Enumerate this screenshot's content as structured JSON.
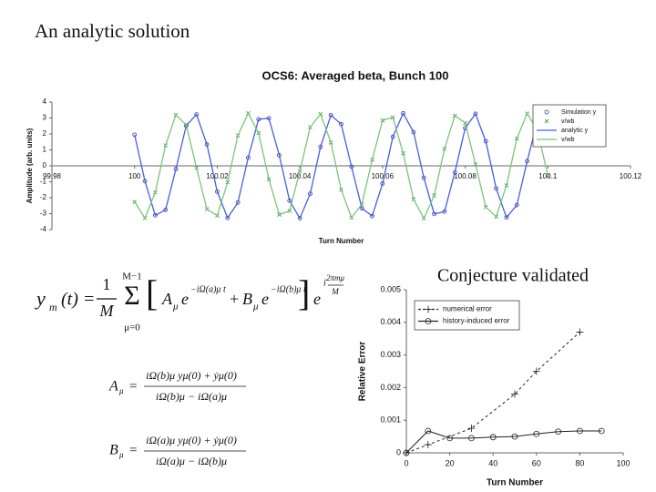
{
  "slide_title": "An analytic solution",
  "equations": {
    "main": [
      "y",
      "m",
      "(t) =",
      "1",
      "M",
      "M−1",
      "Σ",
      "μ=0",
      "[",
      "A",
      "μ",
      "e",
      "−iΩ(a)μ t",
      "+",
      "B",
      "μ",
      "e",
      "−iΩ(b)μ t",
      "]",
      "e",
      "i",
      "2πmμ",
      "M"
    ],
    "a": [
      "A",
      "μ",
      "=",
      "iΩ(b)μ yμ(0) + ẏμ(0)",
      "iΩ(b)μ − iΩ(a)μ"
    ],
    "b": [
      "B",
      "μ",
      "=",
      "iΩ(a)μ yμ(0) + ẏμ(0)",
      "iΩ(a)μ − iΩ(b)μ"
    ]
  },
  "chart_data": [
    {
      "type": "line",
      "title": "OCS6: Averaged beta, Bunch 100",
      "xlabel": "Turn Number",
      "ylabel": "Amplitude (arb. units)",
      "xlim": [
        99.98,
        100.12
      ],
      "ylim": [
        -4,
        4
      ],
      "xticks": [
        99.98,
        100,
        100.02,
        100.04,
        100.06,
        100.08,
        100.1,
        100.12
      ],
      "yticks": [
        -4,
        -3,
        -2,
        -1,
        0,
        1,
        2,
        3,
        4
      ],
      "legend": "upper right",
      "grid": false,
      "x": [
        100,
        100.0025,
        100.005,
        100.0075,
        100.01,
        100.0125,
        100.015,
        100.0175,
        100.02,
        100.0225,
        100.025,
        100.0275,
        100.03,
        100.0325,
        100.035,
        100.0375,
        100.04,
        100.0425,
        100.045,
        100.0475,
        100.05,
        100.0525,
        100.055,
        100.0575,
        100.06,
        100.0625,
        100.065,
        100.0675,
        100.07,
        100.0725,
        100.075,
        100.0775,
        100.08,
        100.0825,
        100.085,
        100.0875,
        100.09,
        100.0925,
        100.095,
        100.0975,
        100.1
      ],
      "series": [
        {
          "name": "Simulation y",
          "color": "#3a3aa0",
          "marker": "o",
          "line": false,
          "values": [
            1.95,
            -0.96,
            -3.1,
            -2.76,
            -0.2,
            2.52,
            3.22,
            1.34,
            -1.62,
            -3.27,
            -2.3,
            0.51,
            2.92,
            2.98,
            0.66,
            -2.19,
            -3.29,
            -1.75,
            1.19,
            3.18,
            2.61,
            -0.05,
            -2.67,
            -3.15,
            -1.11,
            1.82,
            3.29,
            2.12,
            -0.75,
            -3.02,
            -2.87,
            -0.42,
            2.37,
            3.26,
            1.54,
            -1.42,
            -3.24,
            -2.46,
            0.29,
            2.81,
            3.07
          ]
        },
        {
          "name": "v/wb",
          "color": "#2e8b3a",
          "marker": "x",
          "line": false,
          "values": [
            -2.26,
            -3.28,
            -1.67,
            1.28,
            3.2,
            2.56,
            -0.13,
            -2.72,
            -3.13,
            -1.03,
            1.9,
            3.3,
            2.06,
            -0.84,
            -3.06,
            -2.83,
            -0.33,
            2.43,
            3.24,
            1.46,
            -1.5,
            -3.25,
            -2.4,
            0.38,
            2.85,
            3.04,
            0.79,
            -2.09,
            -3.3,
            -1.86,
            1.07,
            3.14,
            2.69,
            0.09,
            -2.59,
            -3.19,
            -1.23,
            1.71,
            3.28,
            2.23,
            -0.62
          ]
        },
        {
          "name": "analytic y",
          "color": "#4a5de0",
          "marker": null,
          "line": true,
          "values": [
            1.95,
            -0.96,
            -3.1,
            -2.76,
            -0.2,
            2.52,
            3.22,
            1.34,
            -1.62,
            -3.27,
            -2.3,
            0.51,
            2.92,
            2.98,
            0.66,
            -2.19,
            -3.29,
            -1.75,
            1.19,
            3.18,
            2.61,
            -0.05,
            -2.67,
            -3.15,
            -1.11,
            1.82,
            3.29,
            2.12,
            -0.75,
            -3.02,
            -2.87,
            -0.42,
            2.37,
            3.26,
            1.54,
            -1.42,
            -3.24,
            -2.46,
            0.29,
            2.81,
            3.07
          ]
        },
        {
          "name": "v/wb",
          "color": "#7cc47c",
          "marker": null,
          "line": true,
          "values": [
            -2.26,
            -3.28,
            -1.67,
            1.28,
            3.2,
            2.56,
            -0.13,
            -2.72,
            -3.13,
            -1.03,
            1.9,
            3.3,
            2.06,
            -0.84,
            -3.06,
            -2.83,
            -0.33,
            2.43,
            3.24,
            1.46,
            -1.5,
            -3.25,
            -2.4,
            0.38,
            2.85,
            3.04,
            0.79,
            -2.09,
            -3.3,
            -1.86,
            1.07,
            3.14,
            2.69,
            0.09,
            -2.59,
            -3.19,
            -1.23,
            1.71,
            3.28,
            2.23,
            -0.62
          ]
        }
      ]
    },
    {
      "type": "line",
      "title": "Conjecture validated",
      "xlabel": "Turn Number",
      "ylabel": "Relative Error",
      "xlim": [
        0,
        100
      ],
      "ylim": [
        0,
        0.005
      ],
      "xticks": [
        0,
        20,
        40,
        60,
        80,
        100
      ],
      "yticks": [
        0,
        0.001,
        0.002,
        0.003,
        0.004,
        0.005
      ],
      "legend": "upper left",
      "grid": false,
      "series": [
        {
          "name": "numerical error",
          "color": "#222222",
          "marker": "+",
          "line": true,
          "dash": true,
          "x": [
            0,
            10,
            30,
            50,
            60,
            80
          ],
          "values": [
            0,
            0.00025,
            0.00075,
            0.0018,
            0.0025,
            0.0037
          ]
        },
        {
          "name": "history-induced error",
          "color": "#222222",
          "marker": "o",
          "line": true,
          "dash": false,
          "x": [
            0,
            10,
            20,
            30,
            40,
            50,
            60,
            70,
            80,
            90
          ],
          "values": [
            0,
            0.00067,
            0.00045,
            0.00045,
            0.00048,
            0.0005,
            0.00058,
            0.00065,
            0.00067,
            0.00067
          ]
        }
      ]
    }
  ]
}
